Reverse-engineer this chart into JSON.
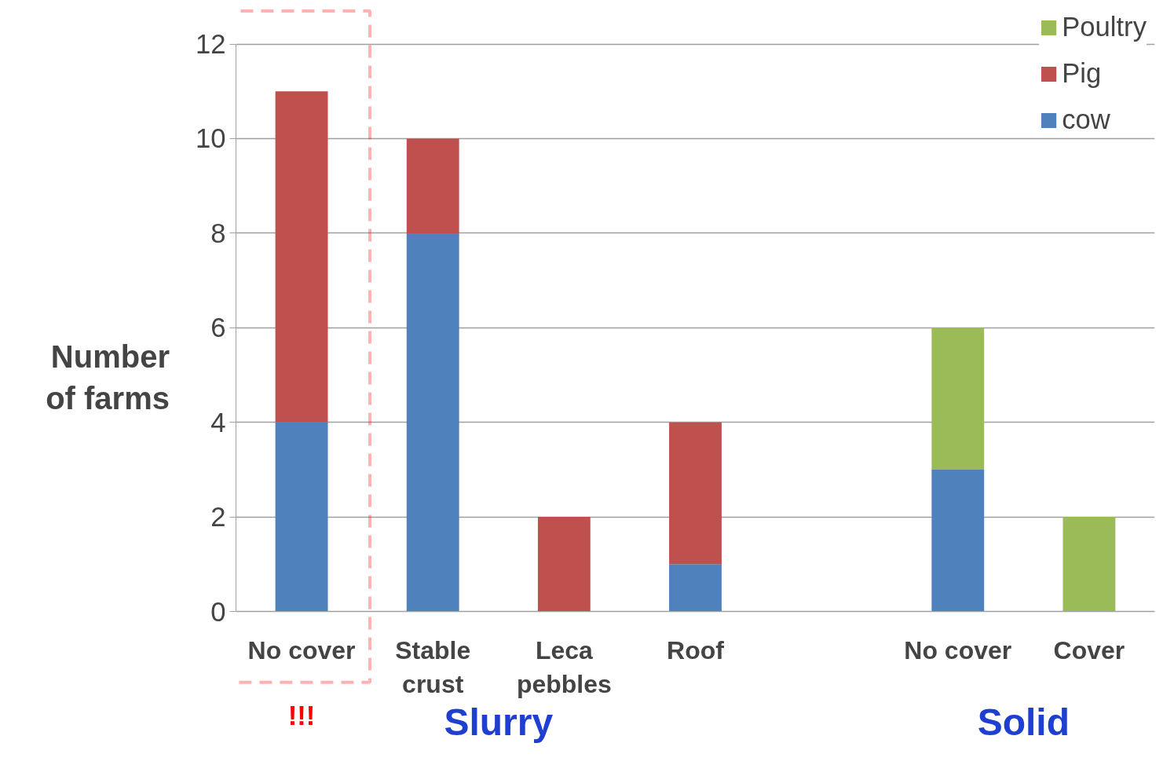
{
  "chart_data": {
    "type": "bar",
    "stacked": true,
    "ylabel": "Number of farms",
    "categories": [
      "No cover",
      "Stable crust",
      "Leca pebbles",
      "Roof",
      null,
      "No cover",
      "Cover"
    ],
    "series": [
      {
        "name": "cow",
        "color": "#4f81bd",
        "values": [
          4,
          8,
          0,
          1,
          null,
          3,
          0
        ]
      },
      {
        "name": "Pig",
        "color": "#c0504d",
        "values": [
          7,
          2,
          2,
          3,
          null,
          0,
          0
        ]
      },
      {
        "name": "Poultry",
        "color": "#9bbb59",
        "values": [
          0,
          0,
          0,
          0,
          null,
          3,
          2
        ]
      }
    ],
    "ylim": [
      0,
      12
    ],
    "yticks": [
      0,
      2,
      4,
      6,
      8,
      10,
      12
    ],
    "grid": "y",
    "legend": "top right",
    "annotations": [
      "!!!",
      "Slurry",
      "Solid"
    ]
  }
}
